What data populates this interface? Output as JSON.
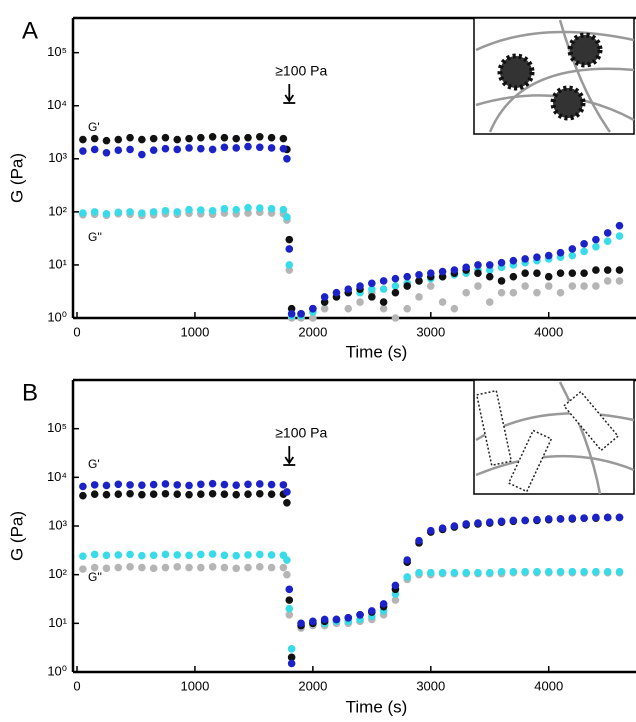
{
  "chart_data": [
    {
      "type": "scatter",
      "panel_label": "A",
      "annotation": "≥100 Pa",
      "g_prime_label": "G'",
      "g_double_prime_label": "G''",
      "xlabel": "Time (s)",
      "ylabel": "G (Pa)",
      "log_y": true,
      "xlim": [
        0,
        4740
      ],
      "ylim": [
        1,
        450000
      ],
      "xticks": [
        0,
        1000,
        2000,
        3000,
        4000
      ],
      "yticks": [
        {
          "value": 1,
          "label": "10⁰"
        },
        {
          "value": 10,
          "label": "10¹"
        },
        {
          "value": 100,
          "label": "10²"
        },
        {
          "value": 1000,
          "label": "10³"
        },
        {
          "value": 10000,
          "label": "10⁴"
        },
        {
          "value": 100000,
          "label": "10⁵"
        }
      ],
      "x": [
        50,
        150,
        250,
        350,
        450,
        550,
        650,
        750,
        850,
        950,
        1050,
        1150,
        1250,
        1350,
        1450,
        1550,
        1650,
        1750,
        1780,
        1800,
        1820,
        1900,
        2000,
        2100,
        2200,
        2300,
        2400,
        2500,
        2600,
        2700,
        2800,
        2900,
        3000,
        3100,
        3200,
        3300,
        3400,
        3500,
        3600,
        3700,
        3800,
        3900,
        4000,
        4100,
        4200,
        4300,
        4400,
        4500,
        4600
      ],
      "series": [
        {
          "color": "#b5b5b5",
          "values": [
            88,
            90,
            86,
            92,
            90,
            85,
            88,
            92,
            90,
            94,
            92,
            90,
            95,
            92,
            95,
            98,
            95,
            92,
            70,
            8,
            1,
            1,
            1,
            1.5,
            3,
            1.5,
            2,
            3,
            1.5,
            1,
            1.5,
            2.5,
            4,
            2,
            1.5,
            3,
            4,
            2,
            3,
            3,
            4,
            3,
            4,
            3,
            4,
            4,
            4,
            5,
            5
          ]
        },
        {
          "color": "#38dbe8",
          "values": [
            95,
            100,
            92,
            98,
            100,
            95,
            100,
            105,
            100,
            110,
            108,
            105,
            115,
            110,
            120,
            118,
            115,
            110,
            80,
            10,
            1.1,
            1.1,
            1.3,
            2,
            2.5,
            3,
            3,
            3.5,
            3.5,
            4,
            4.5,
            5,
            5.5,
            6,
            6.5,
            7,
            8,
            8,
            9,
            10,
            11,
            12,
            13,
            14,
            15,
            18,
            22,
            28,
            35
          ]
        },
        {
          "color": "#111111",
          "values": [
            2300,
            2400,
            2200,
            2300,
            2500,
            2300,
            2400,
            2500,
            2300,
            2400,
            2500,
            2600,
            2500,
            2400,
            2500,
            2600,
            2500,
            2400,
            1500,
            30,
            1.5,
            1.2,
            1.5,
            2,
            2.5,
            3,
            3.5,
            2.5,
            2,
            3,
            4,
            5,
            6,
            6,
            7,
            8,
            7,
            6,
            5,
            6,
            7,
            7,
            6,
            7,
            7,
            7,
            8,
            8,
            8
          ]
        },
        {
          "color": "#1a22c8",
          "values": [
            1400,
            1500,
            1300,
            1450,
            1500,
            1200,
            1450,
            1550,
            1500,
            1600,
            1550,
            1500,
            1650,
            1600,
            1700,
            1650,
            1600,
            1550,
            1000,
            20,
            1.2,
            1.2,
            1.5,
            2.5,
            3,
            3.5,
            4,
            4.5,
            5,
            5.5,
            6,
            6.5,
            7,
            7.5,
            8,
            9,
            10,
            10,
            11,
            12,
            13,
            14,
            15,
            17,
            20,
            25,
            30,
            40,
            55
          ]
        }
      ]
    },
    {
      "type": "scatter",
      "panel_label": "B",
      "annotation": "≥100 Pa",
      "g_prime_label": "G'",
      "g_double_prime_label": "G''",
      "xlabel": "Time (s)",
      "ylabel": "G (Pa)",
      "log_y": true,
      "xlim": [
        0,
        4740
      ],
      "ylim": [
        1,
        1000000
      ],
      "xticks": [
        0,
        1000,
        2000,
        3000,
        4000
      ],
      "yticks": [
        {
          "value": 1,
          "label": "10⁰"
        },
        {
          "value": 10,
          "label": "10¹"
        },
        {
          "value": 100,
          "label": "10²"
        },
        {
          "value": 1000,
          "label": "10³"
        },
        {
          "value": 10000,
          "label": "10⁴"
        },
        {
          "value": 100000,
          "label": "10⁵"
        }
      ],
      "x": [
        50,
        150,
        250,
        350,
        450,
        550,
        650,
        750,
        850,
        950,
        1050,
        1150,
        1250,
        1350,
        1450,
        1550,
        1650,
        1750,
        1780,
        1800,
        1820,
        1900,
        2000,
        2100,
        2200,
        2300,
        2400,
        2500,
        2600,
        2700,
        2800,
        2900,
        3000,
        3100,
        3200,
        3300,
        3400,
        3500,
        3600,
        3700,
        3800,
        3900,
        4000,
        4100,
        4200,
        4300,
        4400,
        4500,
        4600
      ],
      "series": [
        {
          "color": "#b5b5b5",
          "values": [
            130,
            140,
            135,
            140,
            145,
            140,
            135,
            140,
            145,
            140,
            140,
            145,
            140,
            135,
            140,
            145,
            140,
            140,
            100,
            15,
            3,
            8,
            9,
            9,
            10,
            10,
            11,
            12,
            15,
            30,
            80,
            100,
            100,
            105,
            105,
            105,
            105,
            105,
            105,
            110,
            110,
            110,
            110,
            110,
            110,
            110,
            110,
            110,
            110
          ]
        },
        {
          "color": "#38dbe8",
          "values": [
            240,
            260,
            250,
            255,
            260,
            245,
            250,
            260,
            255,
            250,
            260,
            265,
            250,
            245,
            255,
            260,
            255,
            250,
            200,
            20,
            3,
            9,
            10,
            10,
            11,
            11,
            12,
            14,
            18,
            40,
            90,
            110,
            110,
            110,
            110,
            110,
            110,
            110,
            115,
            115,
            115,
            115,
            115,
            115,
            115,
            115,
            115,
            115,
            115
          ]
        },
        {
          "color": "#111111",
          "values": [
            4200,
            4500,
            4400,
            4500,
            4600,
            4400,
            4500,
            4600,
            4500,
            4400,
            4500,
            4600,
            4500,
            4400,
            4500,
            4600,
            4500,
            4500,
            3000,
            30,
            2,
            9,
            10,
            11,
            12,
            13,
            15,
            17,
            22,
            50,
            180,
            450,
            750,
            850,
            950,
            1050,
            1100,
            1150,
            1200,
            1250,
            1300,
            1300,
            1350,
            1400,
            1400,
            1450,
            1450,
            1500,
            1500
          ]
        },
        {
          "color": "#1a22c8",
          "values": [
            6500,
            7000,
            6800,
            7200,
            7000,
            6900,
            7100,
            7300,
            7000,
            6800,
            7200,
            7400,
            7100,
            6900,
            7200,
            7300,
            7100,
            7000,
            5000,
            50,
            1.5,
            10,
            11,
            12,
            12,
            13,
            15,
            18,
            25,
            60,
            200,
            500,
            800,
            900,
            1000,
            1100,
            1150,
            1200,
            1250,
            1300,
            1300,
            1350,
            1400,
            1400,
            1450,
            1450,
            1500,
            1500,
            1500
          ]
        }
      ]
    }
  ]
}
